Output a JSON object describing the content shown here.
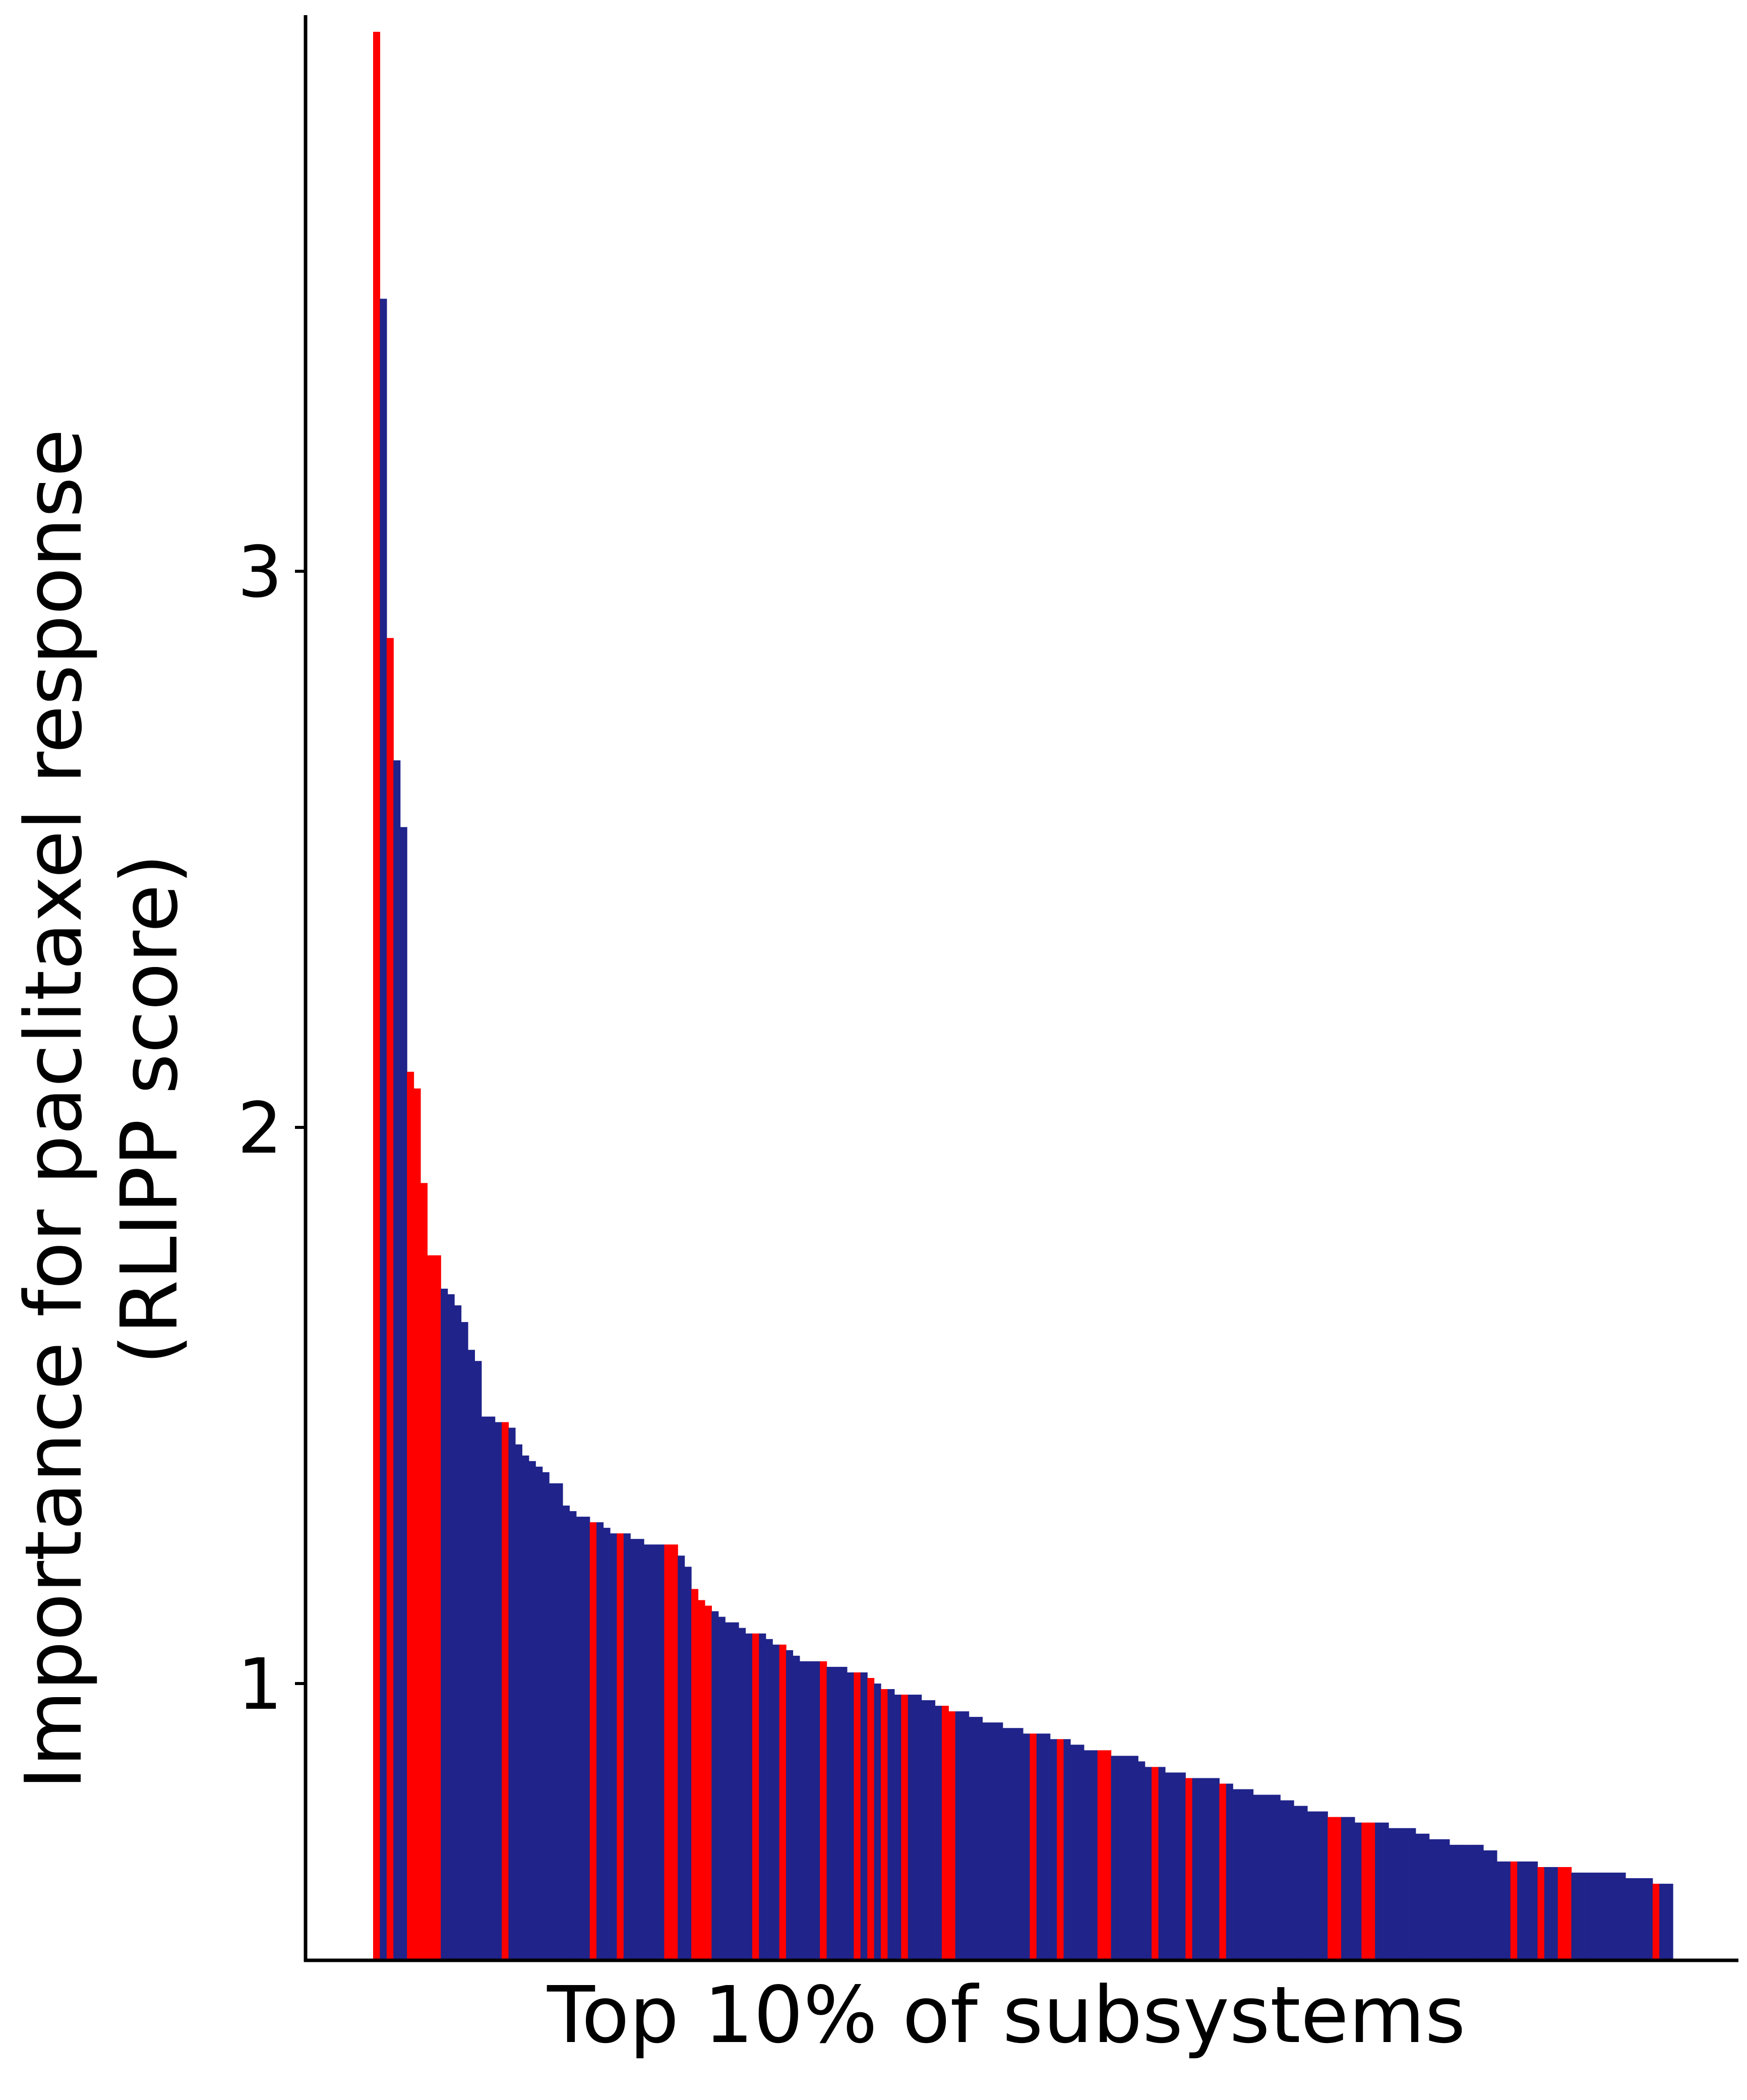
{
  "chart_data": {
    "type": "bar",
    "xlabel": "Top 10% of subsystems",
    "ylabel_lines": [
      "Importance for paclitaxel response",
      "(RLIPP score)"
    ],
    "yticks": [
      1,
      2,
      3
    ],
    "ylim": [
      0.5,
      4.0
    ],
    "grid": false,
    "legend": "none",
    "colors": {
      "highlight": "#ff0000",
      "default": "#1f238a",
      "axis": "#000000"
    },
    "bars": [
      {
        "v": 3.97,
        "h": true
      },
      {
        "v": 3.49,
        "h": false
      },
      {
        "v": 2.88,
        "h": true
      },
      {
        "v": 2.66,
        "h": false
      },
      {
        "v": 2.54,
        "h": false
      },
      {
        "v": 2.1,
        "h": true
      },
      {
        "v": 2.07,
        "h": true
      },
      {
        "v": 1.9,
        "h": true
      },
      {
        "v": 1.77,
        "h": true
      },
      {
        "v": 1.77,
        "h": true
      },
      {
        "v": 1.71,
        "h": false
      },
      {
        "v": 1.7,
        "h": false
      },
      {
        "v": 1.68,
        "h": false
      },
      {
        "v": 1.65,
        "h": false
      },
      {
        "v": 1.6,
        "h": false
      },
      {
        "v": 1.58,
        "h": false
      },
      {
        "v": 1.48,
        "h": false
      },
      {
        "v": 1.48,
        "h": false
      },
      {
        "v": 1.47,
        "h": false
      },
      {
        "v": 1.47,
        "h": true
      },
      {
        "v": 1.46,
        "h": false
      },
      {
        "v": 1.43,
        "h": false
      },
      {
        "v": 1.41,
        "h": false
      },
      {
        "v": 1.4,
        "h": false
      },
      {
        "v": 1.39,
        "h": false
      },
      {
        "v": 1.38,
        "h": false
      },
      {
        "v": 1.36,
        "h": false
      },
      {
        "v": 1.36,
        "h": false
      },
      {
        "v": 1.32,
        "h": false
      },
      {
        "v": 1.31,
        "h": false
      },
      {
        "v": 1.3,
        "h": false
      },
      {
        "v": 1.3,
        "h": false
      },
      {
        "v": 1.29,
        "h": true
      },
      {
        "v": 1.29,
        "h": false
      },
      {
        "v": 1.28,
        "h": false
      },
      {
        "v": 1.27,
        "h": false
      },
      {
        "v": 1.27,
        "h": true
      },
      {
        "v": 1.27,
        "h": false
      },
      {
        "v": 1.26,
        "h": false
      },
      {
        "v": 1.26,
        "h": false
      },
      {
        "v": 1.25,
        "h": false
      },
      {
        "v": 1.25,
        "h": false
      },
      {
        "v": 1.25,
        "h": false
      },
      {
        "v": 1.25,
        "h": true
      },
      {
        "v": 1.25,
        "h": true
      },
      {
        "v": 1.23,
        "h": false
      },
      {
        "v": 1.21,
        "h": false
      },
      {
        "v": 1.17,
        "h": true
      },
      {
        "v": 1.15,
        "h": true
      },
      {
        "v": 1.14,
        "h": true
      },
      {
        "v": 1.13,
        "h": false
      },
      {
        "v": 1.12,
        "h": false
      },
      {
        "v": 1.11,
        "h": false
      },
      {
        "v": 1.11,
        "h": false
      },
      {
        "v": 1.1,
        "h": false
      },
      {
        "v": 1.09,
        "h": false
      },
      {
        "v": 1.09,
        "h": true
      },
      {
        "v": 1.09,
        "h": false
      },
      {
        "v": 1.08,
        "h": false
      },
      {
        "v": 1.07,
        "h": false
      },
      {
        "v": 1.07,
        "h": true
      },
      {
        "v": 1.06,
        "h": false
      },
      {
        "v": 1.05,
        "h": false
      },
      {
        "v": 1.04,
        "h": false
      },
      {
        "v": 1.04,
        "h": false
      },
      {
        "v": 1.04,
        "h": false
      },
      {
        "v": 1.04,
        "h": true
      },
      {
        "v": 1.03,
        "h": false
      },
      {
        "v": 1.03,
        "h": false
      },
      {
        "v": 1.03,
        "h": false
      },
      {
        "v": 1.02,
        "h": false
      },
      {
        "v": 1.02,
        "h": true
      },
      {
        "v": 1.02,
        "h": false
      },
      {
        "v": 1.01,
        "h": true
      },
      {
        "v": 1.0,
        "h": false
      },
      {
        "v": 0.99,
        "h": true
      },
      {
        "v": 0.99,
        "h": false
      },
      {
        "v": 0.98,
        "h": false
      },
      {
        "v": 0.98,
        "h": true
      },
      {
        "v": 0.98,
        "h": false
      },
      {
        "v": 0.98,
        "h": false
      },
      {
        "v": 0.97,
        "h": false
      },
      {
        "v": 0.97,
        "h": false
      },
      {
        "v": 0.96,
        "h": false
      },
      {
        "v": 0.96,
        "h": true
      },
      {
        "v": 0.95,
        "h": true
      },
      {
        "v": 0.95,
        "h": false
      },
      {
        "v": 0.95,
        "h": false
      },
      {
        "v": 0.94,
        "h": false
      },
      {
        "v": 0.94,
        "h": false
      },
      {
        "v": 0.93,
        "h": false
      },
      {
        "v": 0.93,
        "h": false
      },
      {
        "v": 0.93,
        "h": false
      },
      {
        "v": 0.92,
        "h": false
      },
      {
        "v": 0.92,
        "h": false
      },
      {
        "v": 0.92,
        "h": false
      },
      {
        "v": 0.91,
        "h": false
      },
      {
        "v": 0.91,
        "h": true
      },
      {
        "v": 0.91,
        "h": false
      },
      {
        "v": 0.91,
        "h": false
      },
      {
        "v": 0.9,
        "h": false
      },
      {
        "v": 0.9,
        "h": true
      },
      {
        "v": 0.9,
        "h": false
      },
      {
        "v": 0.89,
        "h": false
      },
      {
        "v": 0.89,
        "h": false
      },
      {
        "v": 0.88,
        "h": false
      },
      {
        "v": 0.88,
        "h": false
      },
      {
        "v": 0.88,
        "h": true
      },
      {
        "v": 0.88,
        "h": true
      },
      {
        "v": 0.87,
        "h": false
      },
      {
        "v": 0.87,
        "h": false
      },
      {
        "v": 0.87,
        "h": false
      },
      {
        "v": 0.87,
        "h": false
      },
      {
        "v": 0.86,
        "h": false
      },
      {
        "v": 0.85,
        "h": false
      },
      {
        "v": 0.85,
        "h": true
      },
      {
        "v": 0.85,
        "h": false
      },
      {
        "v": 0.84,
        "h": false
      },
      {
        "v": 0.84,
        "h": false
      },
      {
        "v": 0.84,
        "h": false
      },
      {
        "v": 0.83,
        "h": true
      },
      {
        "v": 0.83,
        "h": false
      },
      {
        "v": 0.83,
        "h": false
      },
      {
        "v": 0.83,
        "h": false
      },
      {
        "v": 0.83,
        "h": false
      },
      {
        "v": 0.82,
        "h": true
      },
      {
        "v": 0.82,
        "h": false
      },
      {
        "v": 0.81,
        "h": false
      },
      {
        "v": 0.81,
        "h": false
      },
      {
        "v": 0.81,
        "h": false
      },
      {
        "v": 0.8,
        "h": false
      },
      {
        "v": 0.8,
        "h": false
      },
      {
        "v": 0.8,
        "h": false
      },
      {
        "v": 0.8,
        "h": false
      },
      {
        "v": 0.79,
        "h": false
      },
      {
        "v": 0.79,
        "h": false
      },
      {
        "v": 0.78,
        "h": false
      },
      {
        "v": 0.78,
        "h": false
      },
      {
        "v": 0.77,
        "h": false
      },
      {
        "v": 0.77,
        "h": false
      },
      {
        "v": 0.77,
        "h": false
      },
      {
        "v": 0.76,
        "h": true
      },
      {
        "v": 0.76,
        "h": true
      },
      {
        "v": 0.76,
        "h": false
      },
      {
        "v": 0.76,
        "h": false
      },
      {
        "v": 0.75,
        "h": false
      },
      {
        "v": 0.75,
        "h": true
      },
      {
        "v": 0.75,
        "h": true
      },
      {
        "v": 0.75,
        "h": false
      },
      {
        "v": 0.75,
        "h": false
      },
      {
        "v": 0.74,
        "h": false
      },
      {
        "v": 0.74,
        "h": false
      },
      {
        "v": 0.74,
        "h": false
      },
      {
        "v": 0.74,
        "h": false
      },
      {
        "v": 0.73,
        "h": false
      },
      {
        "v": 0.73,
        "h": false
      },
      {
        "v": 0.72,
        "h": false
      },
      {
        "v": 0.72,
        "h": false
      },
      {
        "v": 0.72,
        "h": false
      },
      {
        "v": 0.71,
        "h": false
      },
      {
        "v": 0.71,
        "h": false
      },
      {
        "v": 0.71,
        "h": false
      },
      {
        "v": 0.71,
        "h": false
      },
      {
        "v": 0.71,
        "h": false
      },
      {
        "v": 0.7,
        "h": false
      },
      {
        "v": 0.7,
        "h": false
      },
      {
        "v": 0.68,
        "h": false
      },
      {
        "v": 0.68,
        "h": false
      },
      {
        "v": 0.68,
        "h": true
      },
      {
        "v": 0.68,
        "h": false
      },
      {
        "v": 0.68,
        "h": false
      },
      {
        "v": 0.68,
        "h": false
      },
      {
        "v": 0.67,
        "h": true
      },
      {
        "v": 0.67,
        "h": false
      },
      {
        "v": 0.67,
        "h": false
      },
      {
        "v": 0.67,
        "h": true
      },
      {
        "v": 0.67,
        "h": true
      },
      {
        "v": 0.66,
        "h": false
      },
      {
        "v": 0.66,
        "h": false
      },
      {
        "v": 0.66,
        "h": false
      },
      {
        "v": 0.66,
        "h": false
      },
      {
        "v": 0.66,
        "h": false
      },
      {
        "v": 0.66,
        "h": false
      },
      {
        "v": 0.66,
        "h": false
      },
      {
        "v": 0.66,
        "h": false
      },
      {
        "v": 0.65,
        "h": false
      },
      {
        "v": 0.65,
        "h": false
      },
      {
        "v": 0.65,
        "h": false
      },
      {
        "v": 0.65,
        "h": false
      },
      {
        "v": 0.64,
        "h": true
      },
      {
        "v": 0.64,
        "h": false
      },
      {
        "v": 0.64,
        "h": false
      }
    ]
  }
}
